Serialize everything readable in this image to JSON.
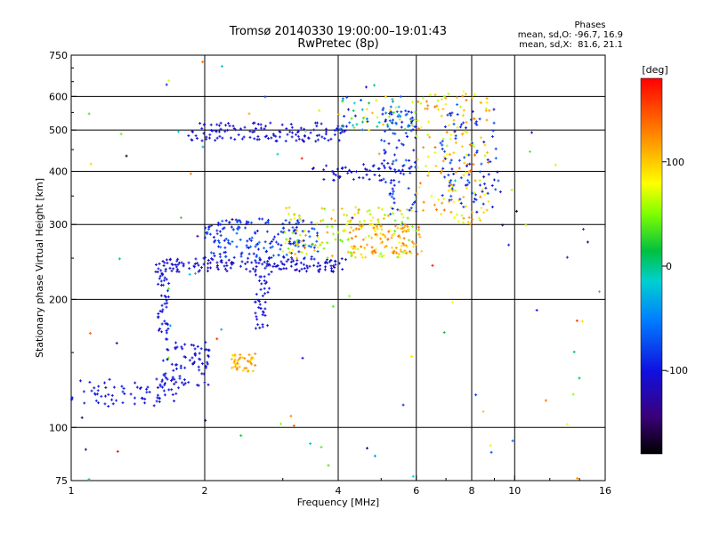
{
  "header": {
    "title": "Tromsø 20140330 19:00:00–19:01:43",
    "subtitle": "RwPretec (8p)"
  },
  "info_box": {
    "title": "Phases",
    "line_o": "mean, sd,O: -96.7, 16.9",
    "line_x": "mean, sd,X:  81.6, 21.1"
  },
  "colorbar": {
    "unit_label": "[deg]",
    "range": [
      -180,
      180
    ],
    "ticks": [
      100,
      0,
      -100
    ],
    "tick_labels": [
      "100",
      "0",
      "-100"
    ]
  },
  "chart_data": {
    "type": "scatter",
    "xlabel": "Frequency [MHz]",
    "ylabel": "Stationary phase Virtual Height [km]",
    "x_scale": "log",
    "y_scale": "log",
    "xlim": [
      1,
      16
    ],
    "ylim": [
      75,
      750
    ],
    "grid": true,
    "x_ticks": [
      1,
      2,
      4,
      6,
      8,
      10,
      16
    ],
    "x_tick_labels": [
      "1",
      "2",
      "4",
      "6",
      "8",
      "10",
      "16"
    ],
    "x_gridlines": [
      2,
      4,
      6,
      8,
      10
    ],
    "y_ticks": [
      75,
      100,
      200,
      300,
      400,
      500,
      600,
      750
    ],
    "y_tick_labels": [
      "75",
      "100",
      "200",
      "300",
      "400",
      "500",
      "600",
      "750"
    ],
    "y_gridlines": [
      100,
      200,
      300,
      400,
      500,
      600
    ],
    "color_variable": "phase [deg]",
    "point_groups": [
      {
        "desc": "E/F1 low band",
        "f": [
          1.0,
          1.75
        ],
        "h": [
          112,
          130
        ],
        "phase": [
          -110,
          -90
        ],
        "n": 70
      },
      {
        "desc": "low-band rise",
        "f": [
          1.6,
          2.05
        ],
        "h": [
          125,
          160
        ],
        "phase": [
          -115,
          -90
        ],
        "n": 80
      },
      {
        "desc": "vertical column 1.6 MHz",
        "f": [
          1.57,
          1.66
        ],
        "h": [
          160,
          240
        ],
        "phase": [
          -110,
          -90
        ],
        "n": 45
      },
      {
        "desc": "F trace lower",
        "f": [
          1.55,
          4.2
        ],
        "h": [
          232,
          250
        ],
        "phase": [
          -120,
          -95
        ],
        "n": 160
      },
      {
        "desc": "F trace upper cluster",
        "f": [
          2.0,
          3.6
        ],
        "h": [
          250,
          310
        ],
        "phase": [
          -110,
          -60
        ],
        "n": 180
      },
      {
        "desc": "F trace mixed",
        "f": [
          3.0,
          6.0
        ],
        "h": [
          250,
          330
        ],
        "phase": [
          40,
          120
        ],
        "n": 160
      },
      {
        "desc": "F2 X-mode rise",
        "f": [
          4.2,
          6.2
        ],
        "h": [
          255,
          300
        ],
        "phase": [
          90,
          140
        ],
        "n": 80
      },
      {
        "desc": "F2 O-mode cusp",
        "f": [
          5.0,
          6.0
        ],
        "h": [
          300,
          560
        ],
        "phase": [
          -110,
          -60
        ],
        "n": 90
      },
      {
        "desc": "F2 X-mode cusp",
        "f": [
          6.0,
          8.8
        ],
        "h": [
          300,
          620
        ],
        "phase": [
          60,
          140
        ],
        "n": 160
      },
      {
        "desc": "F2 cusp O",
        "f": [
          6.8,
          9.3
        ],
        "h": [
          320,
          560
        ],
        "phase": [
          -110,
          -70
        ],
        "n": 90
      },
      {
        "desc": "multi-hop band",
        "f": [
          1.8,
          4.2
        ],
        "h": [
          470,
          520
        ],
        "phase": [
          -115,
          -95
        ],
        "n": 130
      },
      {
        "desc": "multi-hop rise",
        "f": [
          4.0,
          6.0
        ],
        "h": [
          500,
          600
        ],
        "phase": [
          -110,
          110
        ],
        "n": 70
      },
      {
        "desc": "oblique 400 km",
        "f": [
          3.5,
          5.5
        ],
        "h": [
          380,
          420
        ],
        "phase": [
          -120,
          -90
        ],
        "n": 50
      },
      {
        "desc": "sporadic 2.5 MHz",
        "f": [
          2.3,
          2.6
        ],
        "h": [
          135,
          150
        ],
        "phase": [
          90,
          130
        ],
        "n": 40
      },
      {
        "desc": "column 2.7 MHz",
        "f": [
          2.6,
          2.8
        ],
        "h": [
          170,
          230
        ],
        "phase": [
          -110,
          -90
        ],
        "n": 40
      },
      {
        "desc": "scattered noise",
        "f": [
          1.0,
          16.0
        ],
        "h": [
          75,
          750
        ],
        "phase": [
          -180,
          180
        ],
        "n": 90
      }
    ]
  }
}
